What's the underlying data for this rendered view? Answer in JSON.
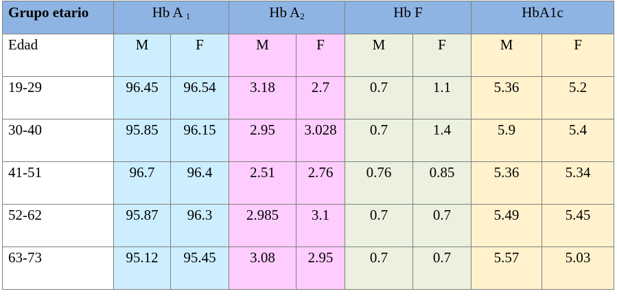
{
  "table": {
    "header": {
      "group": "Grupo etario",
      "hba1_main": "Hb A ",
      "hba1_sub": "1",
      "hba2_main": "Hb A",
      "hba2_sub": "2",
      "hbf": "Hb F",
      "hba1c": "HbA1c"
    },
    "subheader": {
      "label": "Edad",
      "cols": [
        "M",
        "F",
        "M",
        "F",
        "M",
        "F",
        "M",
        "F"
      ]
    },
    "rows": [
      {
        "group": "19-29",
        "values": [
          "96.45",
          "96.54",
          "3.18",
          "2.7",
          "0.7",
          "1.1",
          "5.36",
          "5.2"
        ]
      },
      {
        "group": "30-40",
        "values": [
          "95.85",
          "96.15",
          "2.95",
          "3.028",
          "0.7",
          "1.4",
          "5.9",
          "5.4"
        ]
      },
      {
        "group": "41-51",
        "values": [
          "96.7",
          "96.4",
          "2.51",
          "2.76",
          "0.76",
          "0.85",
          "5.36",
          "5.34"
        ]
      },
      {
        "group": "52-62",
        "values": [
          "95.87",
          "96.3",
          "2.985",
          "3.1",
          "0.7",
          "0.7",
          "5.49",
          "5.45"
        ]
      },
      {
        "group": "63-73",
        "values": [
          "95.12",
          "95.45",
          "3.08",
          "2.95",
          "0.7",
          "0.7",
          "5.57",
          "5.03"
        ]
      }
    ],
    "colors": {
      "header": "#8eb4e3",
      "hba1": "#cceeff",
      "hba2": "#ffccff",
      "hbf": "#ebf1de",
      "hba1c": "#fff2cc",
      "border": "#7f7f7f"
    }
  }
}
